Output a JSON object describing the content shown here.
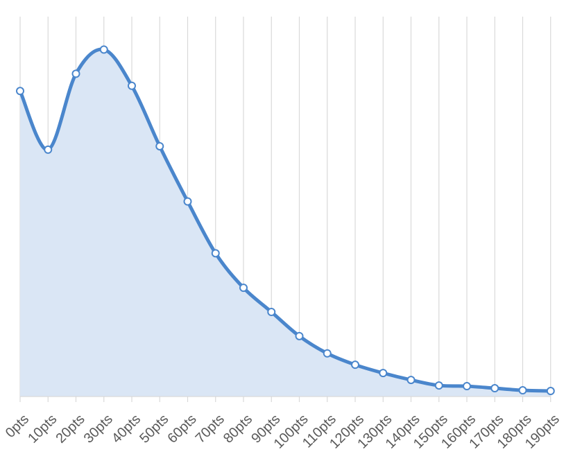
{
  "chart_data": {
    "type": "area",
    "categories": [
      "0pts",
      "10pts",
      "20pts",
      "30pts",
      "40pts",
      "50pts",
      "60pts",
      "70pts",
      "80pts",
      "90pts",
      "100pts",
      "110pts",
      "120pts",
      "130pts",
      "140pts",
      "150pts",
      "160pts",
      "170pts",
      "180pts",
      "190pts"
    ],
    "series": [
      {
        "values": [
          88.5,
          71.5,
          93.5,
          100.5,
          90,
          72.5,
          56.5,
          41.5,
          31.5,
          24.5,
          17.5,
          12.5,
          9.2,
          6.8,
          4.8,
          3.2,
          3.0,
          2.4,
          1.8,
          1.6
        ],
        "color": "#4a86cc",
        "fill_color": "#dae6f5"
      }
    ],
    "ylim": [
      0,
      100
    ],
    "title": "",
    "xlabel": "",
    "ylabel": "",
    "grid": "vertical",
    "legend": "none"
  }
}
